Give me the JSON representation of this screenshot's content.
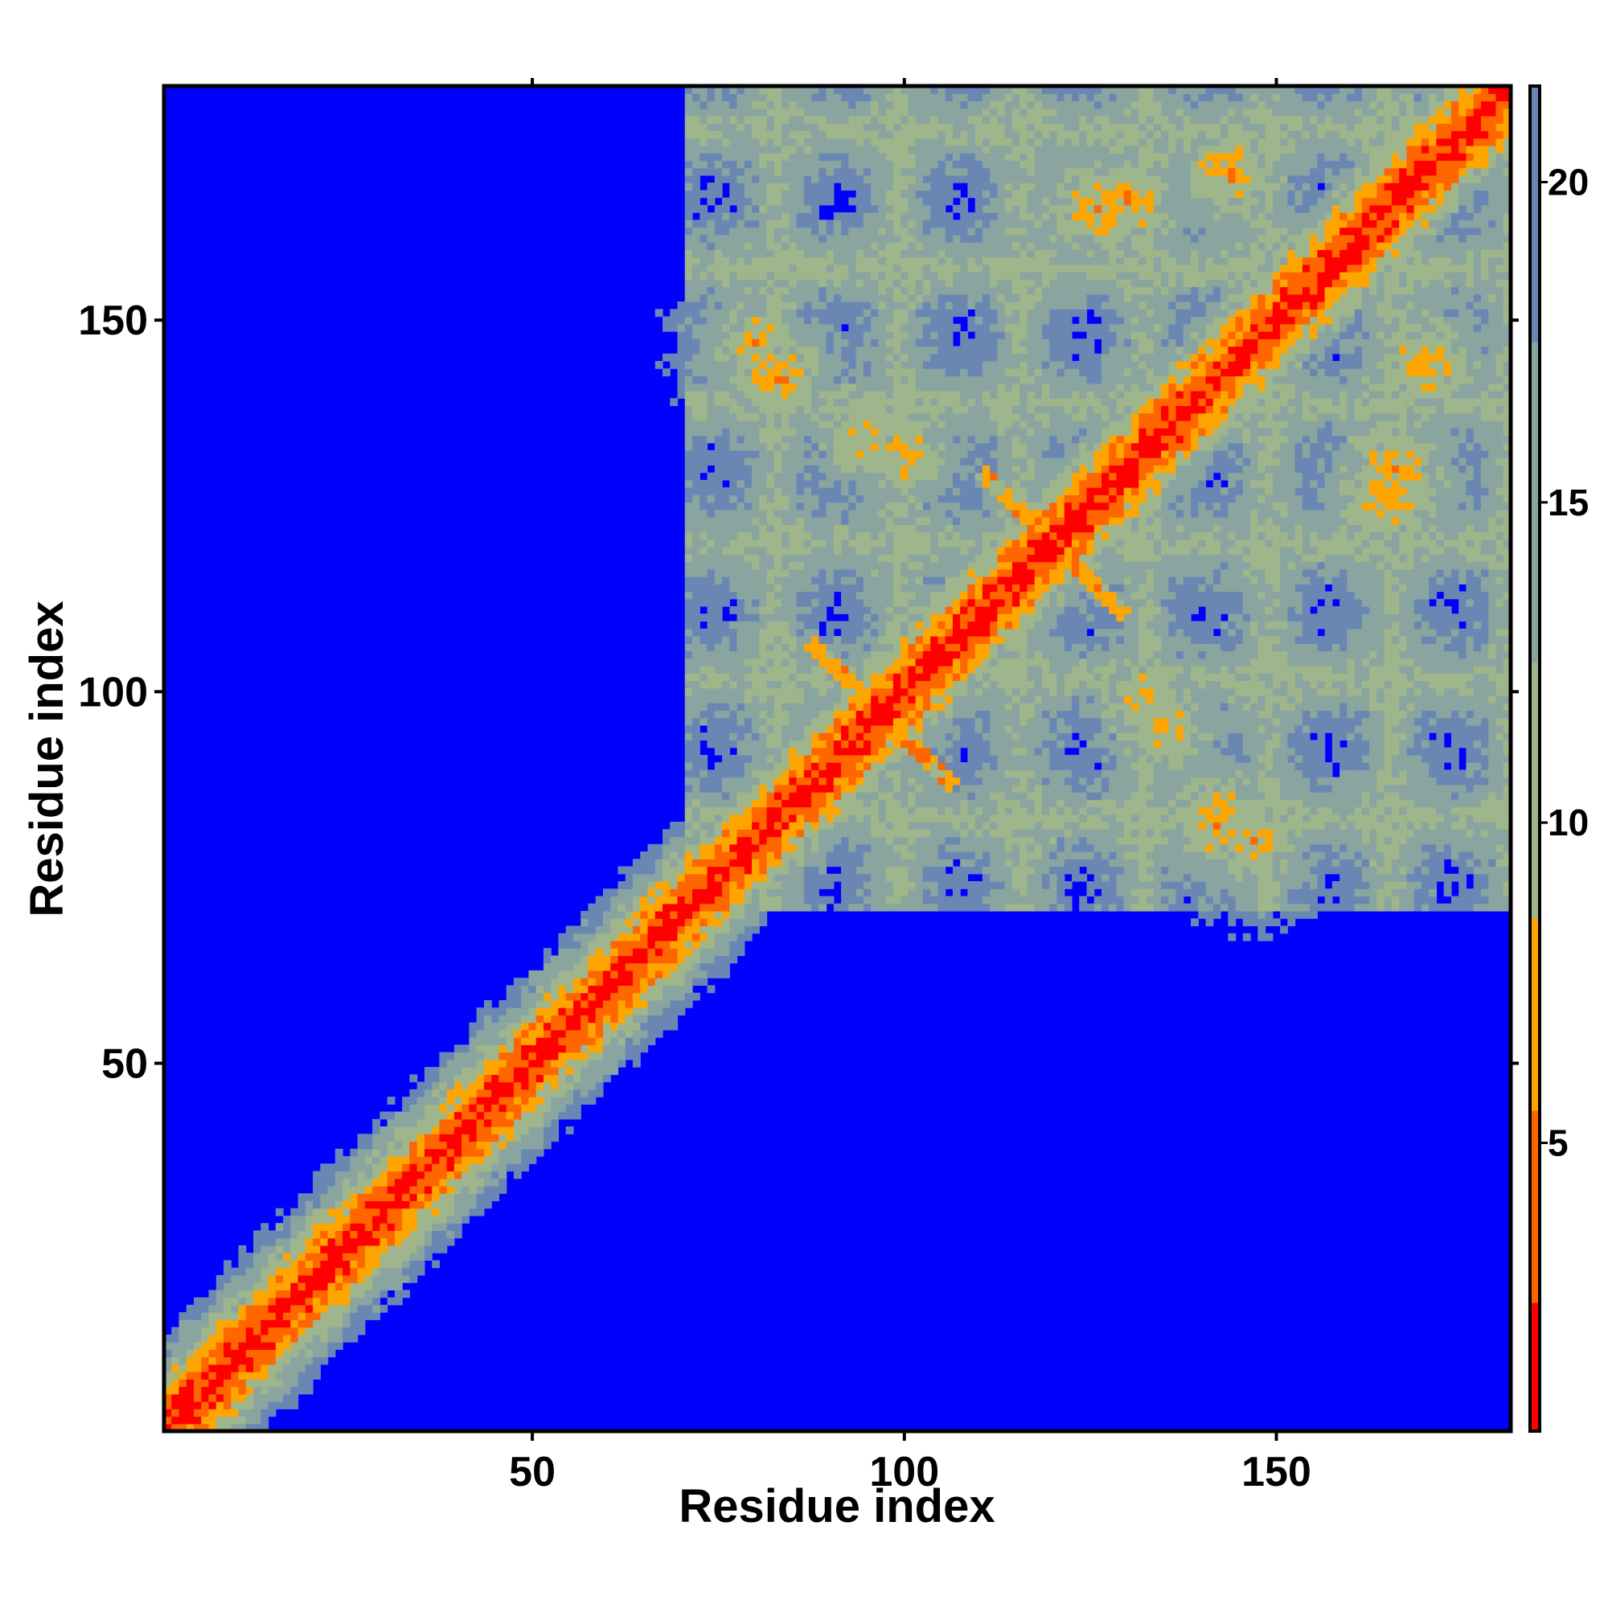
{
  "chart_data": {
    "type": "heatmap",
    "title": "",
    "xlabel": "Residue index",
    "ylabel": "Residue index",
    "n_residues": 181,
    "xlim": [
      1,
      181
    ],
    "ylim": [
      1,
      181
    ],
    "x_ticks": [
      50,
      100,
      150
    ],
    "y_ticks": [
      50,
      100,
      150
    ],
    "x_tick_labels": [
      "50",
      "100",
      "150"
    ],
    "y_tick_labels": [
      "50",
      "100",
      "150"
    ],
    "grid": false,
    "value_cap": 21.5,
    "colorbar": {
      "range": [
        0.5,
        21.5
      ],
      "ticks": [
        5,
        10,
        15,
        20
      ],
      "tick_labels": [
        "5",
        "10",
        "15",
        "20"
      ],
      "colors": {
        "very_close": "#ff0000",
        "close": "#ff6600",
        "contact": "#ffa500",
        "near": "#9fb58c",
        "mid": "#8aa5a0",
        "far": "#6a87b3",
        "background": "#0000ff"
      },
      "color_stops": [
        0.5,
        2.5,
        5.5,
        8.5,
        12.5,
        17.5,
        21.5
      ]
    },
    "features": {
      "diagonal": "red band along the main diagonal with orange and grey-green shoulders",
      "contact_clusters": [
        {
          "x": 97,
          "y": 97,
          "shape": "cross",
          "peak": 6
        },
        {
          "x": 120,
          "y": 120,
          "shape": "cross",
          "peak": 6
        },
        {
          "x": 80,
          "y": 147,
          "peak": 7
        },
        {
          "x": 130,
          "y": 166,
          "peak": 6
        },
        {
          "x": 170,
          "y": 144,
          "peak": 6
        },
        {
          "x": 165,
          "y": 126,
          "peak": 6
        },
        {
          "x": 142,
          "y": 83,
          "peak": 6
        },
        {
          "x": 132,
          "y": 100,
          "peak": 7
        },
        {
          "x": 95,
          "y": 135,
          "peak": 7
        }
      ]
    }
  }
}
